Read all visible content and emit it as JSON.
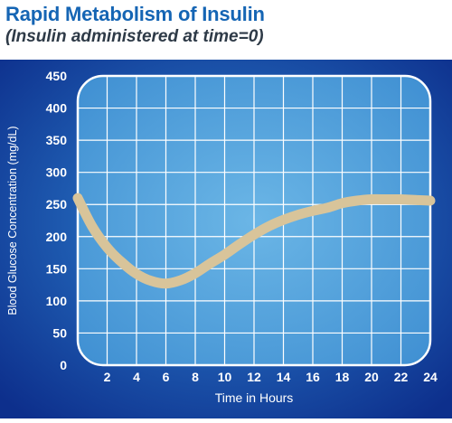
{
  "title": "Rapid Metabolism of Insulin",
  "subtitle": "(Insulin administered at time=0)",
  "colors": {
    "title": "#1565b4",
    "subtitle": "#2e3a47",
    "panel_dark": "#0d2f8c",
    "panel_light": "#2f86d4",
    "plot_fill": "#5aa8de",
    "grid": "#ffffff",
    "curve": "#d8c49a"
  },
  "chart_data": {
    "type": "line",
    "title": "Rapid Metabolism of Insulin",
    "subtitle": "(Insulin administered at time=0)",
    "xlabel": "Time in Hours",
    "ylabel": "Blood Glucose Concentration (mg/dL)",
    "xlim": [
      0,
      24
    ],
    "ylim": [
      0,
      450
    ],
    "xticks": [
      2,
      4,
      6,
      8,
      10,
      12,
      14,
      16,
      18,
      20,
      22,
      24
    ],
    "yticks": [
      0,
      50,
      100,
      150,
      200,
      250,
      300,
      350,
      400,
      450
    ],
    "grid": true,
    "series": [
      {
        "x": [
          0,
          1,
          2,
          3,
          4,
          5,
          6,
          7,
          8,
          9,
          10,
          11,
          12,
          13,
          14,
          15,
          16,
          17,
          18,
          19,
          20,
          21,
          22,
          23,
          24
        ],
        "y": [
          260,
          215,
          183,
          160,
          142,
          131,
          127,
          132,
          143,
          158,
          172,
          188,
          203,
          216,
          226,
          234,
          240,
          245,
          252,
          256,
          258,
          258,
          258,
          257,
          256
        ]
      }
    ]
  }
}
